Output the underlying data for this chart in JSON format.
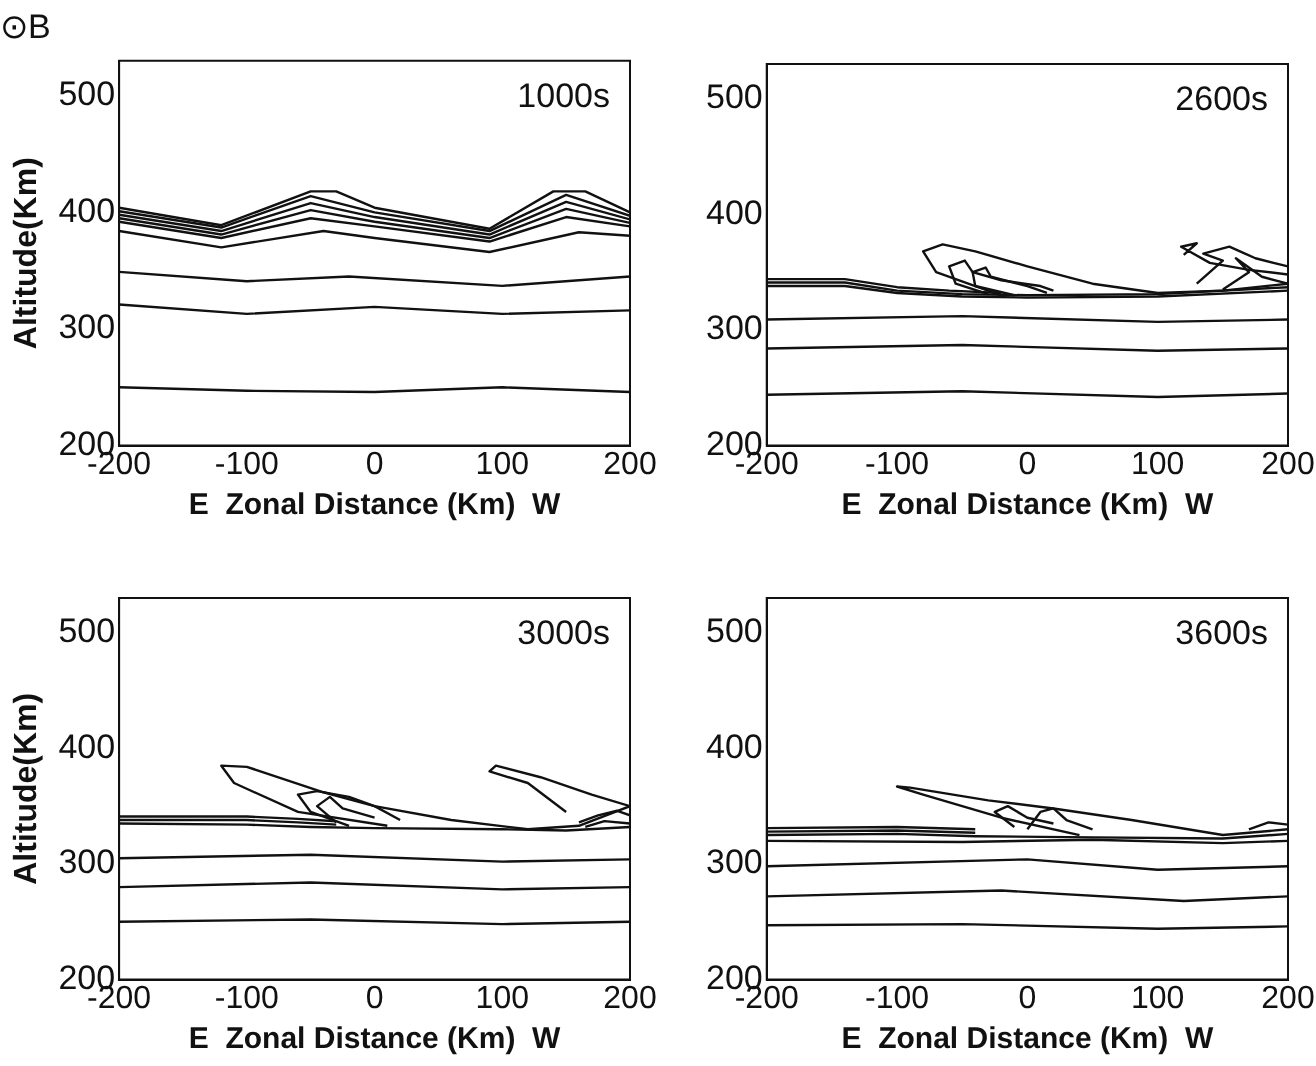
{
  "chart_data": [
    {
      "type": "line",
      "title": "⊙B",
      "ylabel": "Altitude(Km)",
      "xlabel": "E  Zonal Distance (Km)  W",
      "annotations": [
        "1000s"
      ],
      "xlim": [
        -200,
        200
      ],
      "ylim": [
        200,
        530
      ],
      "xticks": [
        -200,
        -100,
        0,
        100,
        200
      ],
      "yticks": [
        200,
        300,
        400,
        500
      ],
      "marker": "none",
      "series": [
        {
          "color": "#111111",
          "x": [
            -200,
            -100,
            0,
            100,
            200
          ],
          "values": [
            250,
            247,
            246,
            250,
            246
          ]
        },
        {
          "color": "#111111",
          "x": [
            -200,
            -100,
            0,
            100,
            200
          ],
          "values": [
            321,
            313,
            319,
            313,
            316
          ]
        },
        {
          "color": "#111111",
          "x": [
            -200,
            -100,
            -20,
            100,
            200
          ],
          "values": [
            349,
            341,
            345,
            337,
            345
          ]
        },
        {
          "color": "#111111",
          "x": [
            -200,
            -120,
            -40,
            0,
            90,
            160,
            200
          ],
          "values": [
            384,
            370,
            384,
            378,
            366,
            383,
            380
          ]
        },
        {
          "color": "#111111",
          "x": [
            -200,
            -120,
            -50,
            0,
            90,
            150,
            200
          ],
          "values": [
            392,
            378,
            395,
            388,
            375,
            396,
            388
          ]
        },
        {
          "color": "#111111",
          "x": [
            -200,
            -120,
            -50,
            0,
            90,
            150,
            200
          ],
          "values": [
            395,
            381,
            402,
            392,
            378,
            403,
            391
          ]
        },
        {
          "color": "#111111",
          "x": [
            -200,
            -120,
            -50,
            0,
            90,
            150,
            200
          ],
          "values": [
            398,
            384,
            408,
            396,
            381,
            409,
            394
          ]
        },
        {
          "color": "#111111",
          "x": [
            -200,
            -120,
            -50,
            0,
            90,
            150,
            200
          ],
          "values": [
            401,
            387,
            414,
            400,
            384,
            415,
            397
          ]
        },
        {
          "color": "#111111",
          "x": [
            -200,
            -120,
            -50,
            -30,
            0,
            90,
            140,
            165,
            200
          ],
          "values": [
            404,
            389,
            418,
            418,
            404,
            386,
            418,
            418,
            400
          ]
        }
      ]
    },
    {
      "type": "line",
      "xlabel": "E  Zonal Distance (Km)  W",
      "annotations": [
        "2600s"
      ],
      "xlim": [
        -200,
        200
      ],
      "ylim": [
        200,
        530
      ],
      "xticks": [
        -200,
        -100,
        0,
        100,
        200
      ],
      "yticks": [
        200,
        300,
        400,
        500
      ],
      "marker": "none",
      "series": [
        {
          "color": "#111111",
          "x": [
            -200,
            -50,
            100,
            200
          ],
          "values": [
            244,
            247,
            242,
            245
          ]
        },
        {
          "color": "#111111",
          "x": [
            -200,
            -50,
            100,
            200
          ],
          "values": [
            284,
            287,
            282,
            284
          ]
        },
        {
          "color": "#111111",
          "x": [
            -200,
            -50,
            100,
            200
          ],
          "values": [
            309,
            312,
            307,
            309
          ]
        },
        {
          "color": "#111111",
          "x": [
            -200,
            -140,
            -100,
            -50,
            0,
            100,
            200
          ],
          "values": [
            338,
            338,
            332,
            329,
            328,
            329,
            334
          ]
        },
        {
          "color": "#111111",
          "x": [
            -200,
            -140,
            -100,
            -50,
            0,
            100,
            200
          ],
          "values": [
            341,
            341,
            334,
            331,
            330,
            331,
            337
          ]
        },
        {
          "color": "#111111",
          "x": [
            -200,
            -140,
            -100,
            -60,
            -20
          ],
          "values": [
            344,
            344,
            337,
            334,
            332
          ]
        },
        {
          "color": "#111111",
          "x": [
            -10,
            -40,
            -70,
            -80,
            -65,
            -40,
            0,
            50,
            100,
            150,
            200
          ],
          "values": [
            330,
            338,
            350,
            368,
            374,
            368,
            355,
            340,
            332,
            334,
            340
          ]
        },
        {
          "color": "#111111",
          "x": [
            -30,
            -55,
            -60,
            -48,
            -42,
            -20,
            10,
            20
          ],
          "values": [
            331,
            340,
            355,
            360,
            350,
            343,
            338,
            334
          ]
        },
        {
          "color": "#111111",
          "x": [
            -20,
            -40,
            -42,
            -32,
            -28,
            0,
            15
          ],
          "values": [
            330,
            338,
            350,
            354,
            346,
            338,
            332
          ]
        },
        {
          "color": "#111111",
          "x": [
            120,
            130,
            118,
            140,
            170,
            200
          ],
          "values": [
            365,
            375,
            372,
            358,
            352,
            348
          ]
        },
        {
          "color": "#111111",
          "x": [
            130,
            150,
            135,
            155,
            175,
            200
          ],
          "values": [
            340,
            360,
            366,
            372,
            362,
            355
          ]
        },
        {
          "color": "#111111",
          "x": [
            150,
            170,
            160,
            180,
            200
          ],
          "values": [
            335,
            350,
            362,
            346,
            340
          ]
        }
      ]
    },
    {
      "type": "line",
      "ylabel": "Altitude(Km)",
      "xlabel": "E  Zonal Distance (Km)  W",
      "annotations": [
        "3000s"
      ],
      "xlim": [
        -200,
        200
      ],
      "ylim": [
        200,
        530
      ],
      "xticks": [
        -200,
        -100,
        0,
        100,
        200
      ],
      "yticks": [
        200,
        300,
        400,
        500
      ],
      "marker": "none",
      "series": [
        {
          "color": "#111111",
          "x": [
            -200,
            -50,
            100,
            200
          ],
          "values": [
            250,
            252,
            248,
            250
          ]
        },
        {
          "color": "#111111",
          "x": [
            -200,
            -50,
            100,
            200
          ],
          "values": [
            280,
            284,
            278,
            280
          ]
        },
        {
          "color": "#111111",
          "x": [
            -200,
            -50,
            100,
            200
          ],
          "values": [
            305,
            308,
            302,
            304
          ]
        },
        {
          "color": "#111111",
          "x": [
            -200,
            -100,
            -50,
            0,
            100,
            150,
            200
          ],
          "values": [
            335,
            334,
            332,
            331,
            330,
            329,
            332
          ]
        },
        {
          "color": "#111111",
          "x": [
            -200,
            -100,
            -60,
            -30
          ],
          "values": [
            338,
            338,
            336,
            334
          ]
        },
        {
          "color": "#111111",
          "x": [
            -200,
            -100,
            -60,
            -30
          ],
          "values": [
            341,
            341,
            339,
            337
          ]
        },
        {
          "color": "#111111",
          "x": [
            10,
            -60,
            -110,
            -120,
            -100,
            -40,
            0,
            60,
            120,
            160,
            200
          ],
          "values": [
            333,
            345,
            370,
            385,
            384,
            362,
            350,
            338,
            330,
            333,
            350
          ]
        },
        {
          "color": "#111111",
          "x": [
            -20,
            -50,
            -60,
            -45,
            -20,
            0,
            20
          ],
          "values": [
            333,
            345,
            360,
            363,
            358,
            350,
            338
          ]
        },
        {
          "color": "#111111",
          "x": [
            -30,
            -45,
            -35,
            -25,
            0
          ],
          "values": [
            336,
            350,
            358,
            348,
            340
          ]
        },
        {
          "color": "#111111",
          "x": [
            150,
            120,
            90,
            95,
            130,
            170,
            200
          ],
          "values": [
            345,
            370,
            380,
            385,
            375,
            360,
            350
          ]
        },
        {
          "color": "#111111",
          "x": [
            160,
            175,
            190,
            200
          ],
          "values": [
            336,
            342,
            346,
            342
          ]
        },
        {
          "color": "#111111",
          "x": [
            165,
            180,
            200
          ],
          "values": [
            332,
            337,
            335
          ]
        }
      ]
    },
    {
      "type": "line",
      "xlabel": "E  Zonal Distance (Km)  W",
      "annotations": [
        "3600s"
      ],
      "xlim": [
        -200,
        200
      ],
      "ylim": [
        200,
        530
      ],
      "xticks": [
        -200,
        -100,
        0,
        100,
        200
      ],
      "yticks": [
        200,
        300,
        400,
        500
      ],
      "marker": "none",
      "series": [
        {
          "color": "#111111",
          "x": [
            -200,
            -50,
            100,
            200
          ],
          "values": [
            247,
            248,
            244,
            246
          ]
        },
        {
          "color": "#111111",
          "x": [
            -200,
            -20,
            120,
            200
          ],
          "values": [
            272,
            277,
            268,
            272
          ]
        },
        {
          "color": "#111111",
          "x": [
            -200,
            0,
            100,
            200
          ],
          "values": [
            298,
            304,
            295,
            298
          ]
        },
        {
          "color": "#111111",
          "x": [
            -200,
            -50,
            50,
            150,
            200
          ],
          "values": [
            320,
            319,
            321,
            318,
            320
          ]
        },
        {
          "color": "#111111",
          "x": [
            -200,
            -100,
            -40,
            50,
            150,
            200
          ],
          "values": [
            325,
            326,
            324,
            323,
            322,
            326
          ]
        },
        {
          "color": "#111111",
          "x": [
            -200,
            -100,
            -40
          ],
          "values": [
            328,
            329,
            327
          ]
        },
        {
          "color": "#111111",
          "x": [
            -200,
            -100,
            -40
          ],
          "values": [
            331,
            332,
            330
          ]
        },
        {
          "color": "#111111",
          "x": [
            40,
            -20,
            -80,
            -100,
            -90,
            -30,
            20,
            80,
            150,
            200
          ],
          "values": [
            325,
            340,
            360,
            367,
            366,
            355,
            348,
            338,
            325,
            330
          ]
        },
        {
          "color": "#111111",
          "x": [
            -10,
            -25,
            -15,
            0,
            20
          ],
          "values": [
            332,
            345,
            350,
            340,
            335
          ]
        },
        {
          "color": "#111111",
          "x": [
            0,
            10,
            20,
            30,
            50
          ],
          "values": [
            330,
            345,
            348,
            338,
            330
          ]
        },
        {
          "color": "#111111",
          "x": [
            170,
            185,
            200
          ],
          "values": [
            330,
            336,
            334
          ]
        }
      ]
    }
  ]
}
